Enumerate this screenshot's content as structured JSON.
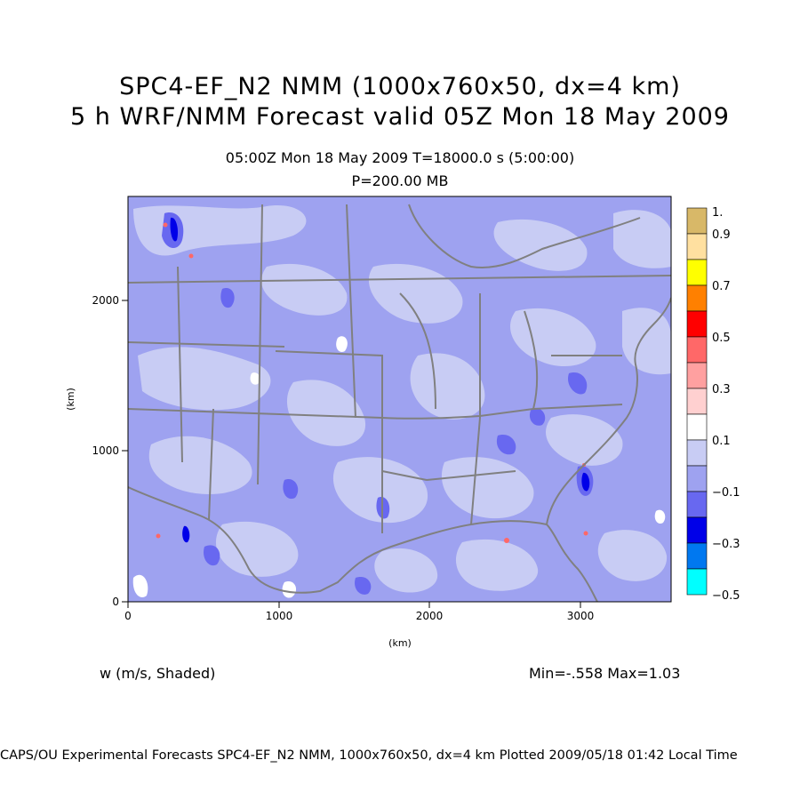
{
  "title": {
    "line1": "SPC4-EF_N2 NMM (1000x760x50, dx=4 km)",
    "line2": "5 h WRF/NMM Forecast valid 05Z Mon 18 May 2009"
  },
  "subtitle": {
    "time": "05:00Z Mon 18 May 2009     T=18000.0 s (5:00:00)",
    "level": "P=200.00 MB"
  },
  "field_label": "w (m/s, Shaded)",
  "minmax": "Min=-.558 Max=1.03",
  "footer": "CAPS/OU Experimental Forecasts  SPC4-EF_N2 NMM, 1000x760x50, dx=4 km  Plotted 2009/05/18 01:42 Local Time",
  "map": {
    "region": "Continental United States",
    "xlabel": "(km)",
    "ylabel": "(km)",
    "x_ticks": [
      "0",
      "1000",
      "2000",
      "3000"
    ],
    "y_ticks": [
      "0",
      "1000",
      "2000"
    ],
    "x_range_km": [
      0,
      3600
    ],
    "y_range_km": [
      0,
      2640
    ]
  },
  "colorbar": {
    "labels": [
      "1.",
      "0.9",
      "0.7",
      "0.5",
      "0.3",
      "0.1",
      "−0.1",
      "−0.3",
      "−0.5"
    ],
    "colors_top_to_bottom": [
      "#d8b868",
      "#ffe0a0",
      "#ffff00",
      "#ff8000",
      "#ff0000",
      "#ff6868",
      "#ffa0a0",
      "#ffd0d0",
      "#ffffff",
      "#c8ccf4",
      "#9ea2f0",
      "#6868f0",
      "#0000e8",
      "#0078f0",
      "#00ffff"
    ]
  },
  "colors": {
    "weak_negative": "#9ea2f0",
    "near_zero": "#c8ccf4",
    "negative": "#6868f0",
    "strong_negative": "#0000e8",
    "boundary": "#808080"
  }
}
